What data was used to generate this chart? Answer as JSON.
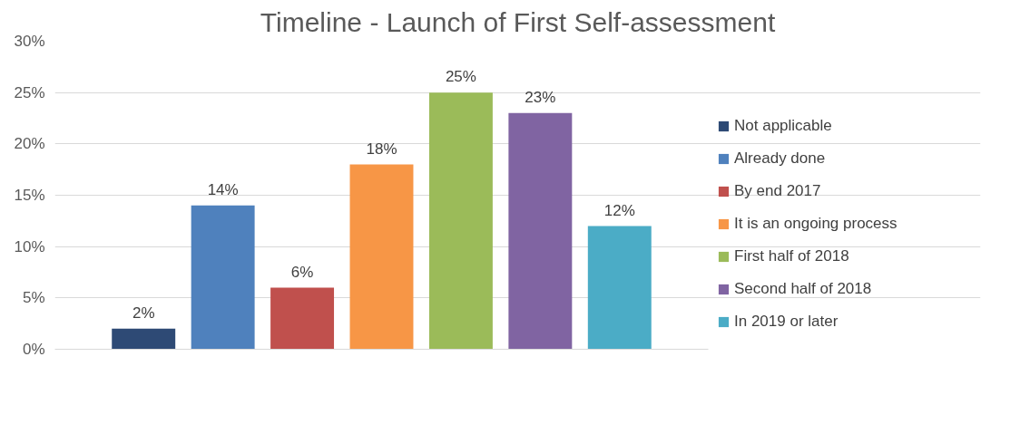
{
  "chart_data": {
    "type": "bar",
    "title": "Timeline - Launch of First Self-assessment",
    "categories": [
      null
    ],
    "series": [
      {
        "name": "Not applicable",
        "color": "#2e4a75",
        "values": [
          2
        ],
        "value_labels": [
          "2%"
        ]
      },
      {
        "name": "Already done",
        "color": "#4f81bd",
        "values": [
          14
        ],
        "value_labels": [
          "14%"
        ]
      },
      {
        "name": "By end 2017",
        "color": "#c0504d",
        "values": [
          6
        ],
        "value_labels": [
          "6%"
        ]
      },
      {
        "name": "It is an ongoing process",
        "color": "#f79646",
        "values": [
          18
        ],
        "value_labels": [
          "18%"
        ]
      },
      {
        "name": "First half of 2018",
        "color": "#9bbb59",
        "values": [
          25
        ],
        "value_labels": [
          "25%"
        ]
      },
      {
        "name": "Second half of 2018",
        "color": "#8064a2",
        "values": [
          23
        ],
        "value_labels": [
          "23%"
        ]
      },
      {
        "name": "In 2019 or later",
        "color": "#4bacc6",
        "values": [
          12
        ],
        "value_labels": [
          "12%"
        ]
      }
    ],
    "ylim": [
      0,
      30
    ],
    "yticks": [
      {
        "value": 0,
        "label": "0%"
      },
      {
        "value": 5,
        "label": "5%"
      },
      {
        "value": 10,
        "label": "10%"
      },
      {
        "value": 15,
        "label": "15%"
      },
      {
        "value": 20,
        "label": "20%"
      },
      {
        "value": 25,
        "label": "25%"
      },
      {
        "value": 30,
        "label": "30%"
      }
    ],
    "grid": "y",
    "legend": "right"
  }
}
